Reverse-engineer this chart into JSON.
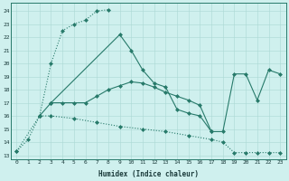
{
  "xlabel": "Humidex (Indice chaleur)",
  "background_color": "#cff0ee",
  "grid_color": "#aad8d4",
  "line_color": "#277a6a",
  "xlim": [
    -0.5,
    23.5
  ],
  "ylim": [
    12.7,
    24.6
  ],
  "yticks": [
    13,
    14,
    15,
    16,
    17,
    18,
    19,
    20,
    21,
    22,
    23,
    24
  ],
  "xticks": [
    0,
    1,
    2,
    3,
    4,
    5,
    6,
    7,
    8,
    9,
    10,
    11,
    12,
    13,
    14,
    15,
    16,
    17,
    18,
    19,
    20,
    21,
    22,
    23
  ],
  "line1_x": [
    0,
    1,
    2,
    3,
    4,
    5,
    6,
    7,
    8
  ],
  "line1_y": [
    13.3,
    14.2,
    16.0,
    20.0,
    22.5,
    23.0,
    23.3,
    24.0,
    24.1
  ],
  "line1_style": "dotted",
  "line2_x": [
    3,
    4,
    5,
    6,
    7,
    8,
    9,
    10,
    11,
    12,
    13,
    14,
    15,
    16,
    17
  ],
  "line2_y": [
    17.0,
    17.0,
    17.0,
    17.0,
    17.5,
    18.0,
    18.3,
    18.6,
    18.5,
    18.2,
    17.8,
    17.5,
    17.2,
    16.8,
    14.8
  ],
  "line2_style": "solid",
  "line3_x": [
    2,
    3,
    9,
    10,
    11,
    12,
    13,
    14,
    15,
    16,
    17,
    18,
    19,
    20,
    21,
    22,
    23
  ],
  "line3_y": [
    16.0,
    17.0,
    22.2,
    21.0,
    19.5,
    18.5,
    18.2,
    16.5,
    16.2,
    16.0,
    14.8,
    14.8,
    19.2,
    19.2,
    17.2,
    19.5,
    19.2
  ],
  "line3_style": "solid",
  "line4_x": [
    0,
    2,
    3,
    5,
    7,
    9,
    11,
    13,
    15,
    17,
    18,
    19,
    20,
    21,
    22,
    23
  ],
  "line4_y": [
    13.3,
    16.0,
    16.0,
    15.8,
    15.5,
    15.2,
    15.0,
    14.8,
    14.5,
    14.2,
    14.0,
    13.2,
    13.2,
    13.2,
    13.2,
    13.2
  ],
  "line4_style": "dotted"
}
